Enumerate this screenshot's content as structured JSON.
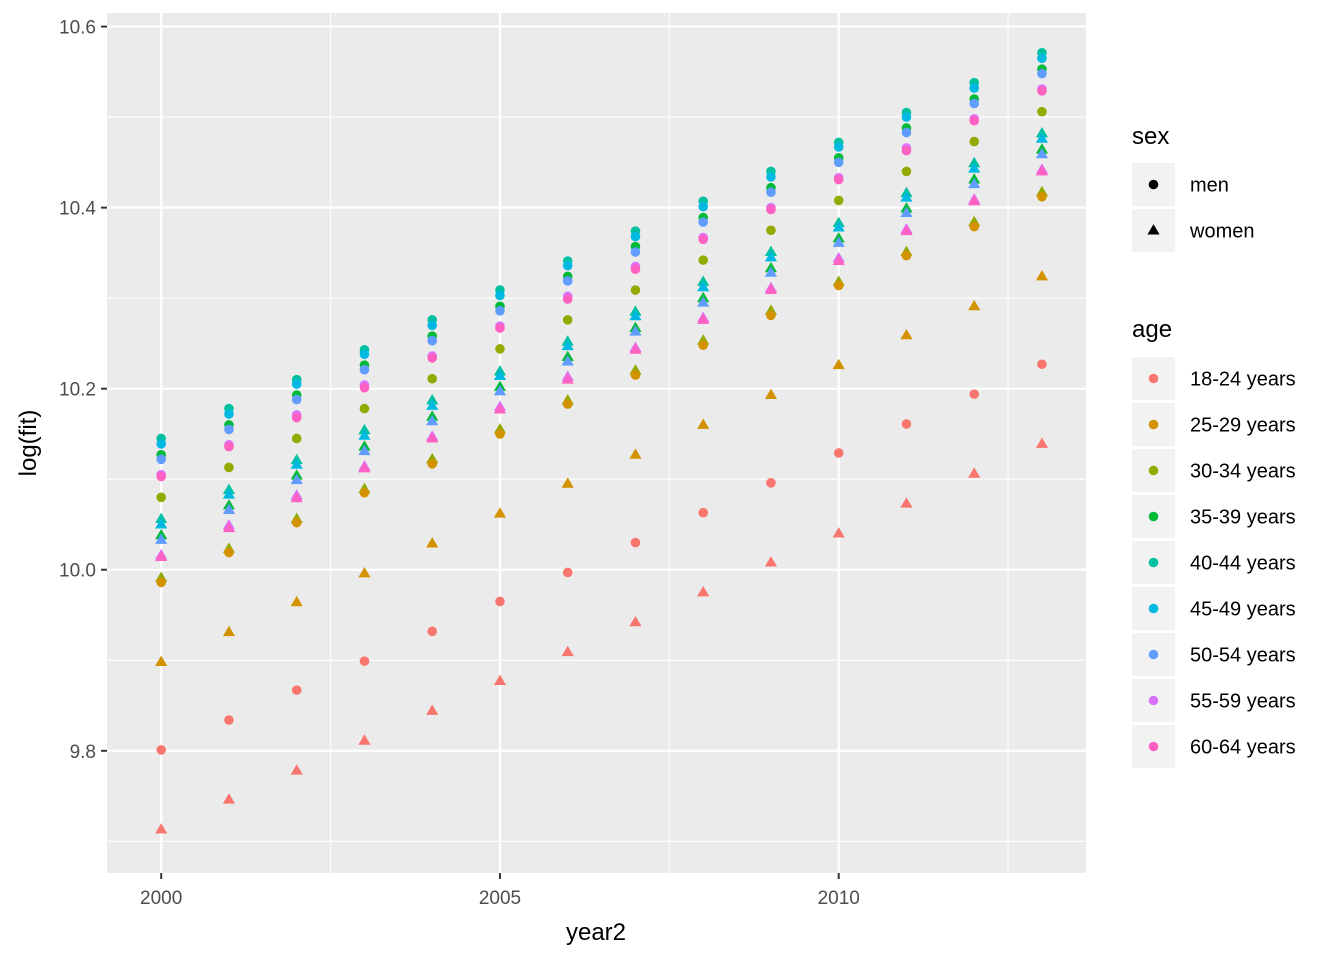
{
  "chart_data": {
    "type": "scatter",
    "xlabel": "year2",
    "ylabel": "log(fit)",
    "x": [
      2000,
      2001,
      2002,
      2003,
      2004,
      2005,
      2006,
      2007,
      2008,
      2009,
      2010,
      2011,
      2012,
      2013
    ],
    "xlim": [
      1999.2,
      2013.65
    ],
    "ylim": [
      9.665,
      10.615
    ],
    "x_ticks": [
      2000,
      2005,
      2010
    ],
    "x_tick_labels": [
      "2000",
      "2005",
      "2010"
    ],
    "y_ticks": [
      9.8,
      10.0,
      10.2,
      10.4,
      10.6
    ],
    "y_tick_labels": [
      "9.8",
      "10.0",
      "10.2",
      "10.4",
      "10.6"
    ],
    "grid": true,
    "legend_position": "right",
    "legends": {
      "shape": {
        "title": "sex",
        "entries": [
          {
            "label": "men",
            "shape": "circle"
          },
          {
            "label": "women",
            "shape": "triangle"
          }
        ]
      },
      "color": {
        "title": "age",
        "entries": [
          {
            "label": "18-24 years",
            "color": "#F8766D"
          },
          {
            "label": "25-29 years",
            "color": "#D39200"
          },
          {
            "label": "30-34 years",
            "color": "#93AA00"
          },
          {
            "label": "35-39 years",
            "color": "#00BA38"
          },
          {
            "label": "40-44 years",
            "color": "#00C19F"
          },
          {
            "label": "45-49 years",
            "color": "#00B9E3"
          },
          {
            "label": "50-54 years",
            "color": "#619CFF"
          },
          {
            "label": "55-59 years",
            "color": "#DB72FB"
          },
          {
            "label": "60-64 years",
            "color": "#FF61C3"
          }
        ]
      }
    },
    "series": [
      {
        "sex": "men",
        "age": "18-24 years",
        "values": [
          9.801,
          9.834,
          9.867,
          9.899,
          9.932,
          9.965,
          9.997,
          10.03,
          10.063,
          10.096,
          10.129,
          10.161,
          10.194,
          10.227
        ]
      },
      {
        "sex": "men",
        "age": "25-29 years",
        "values": [
          9.986,
          10.019,
          10.052,
          10.085,
          10.117,
          10.15,
          10.183,
          10.215,
          10.248,
          10.281,
          10.314,
          10.347,
          10.379,
          10.412
        ]
      },
      {
        "sex": "men",
        "age": "30-34 years",
        "values": [
          10.08,
          10.113,
          10.145,
          10.178,
          10.211,
          10.244,
          10.276,
          10.309,
          10.342,
          10.375,
          10.408,
          10.44,
          10.473,
          10.506
        ]
      },
      {
        "sex": "men",
        "age": "35-39 years",
        "values": [
          10.127,
          10.16,
          10.193,
          10.226,
          10.258,
          10.291,
          10.324,
          10.357,
          10.389,
          10.422,
          10.455,
          10.488,
          10.52,
          10.553
        ]
      },
      {
        "sex": "men",
        "age": "40-44 years",
        "values": [
          10.145,
          10.178,
          10.21,
          10.243,
          10.276,
          10.309,
          10.341,
          10.374,
          10.407,
          10.44,
          10.472,
          10.505,
          10.538,
          10.571
        ]
      },
      {
        "sex": "men",
        "age": "45-49 years",
        "values": [
          10.139,
          10.172,
          10.205,
          10.238,
          10.27,
          10.303,
          10.336,
          10.368,
          10.401,
          10.434,
          10.467,
          10.5,
          10.532,
          10.565
        ]
      },
      {
        "sex": "men",
        "age": "50-54 years",
        "values": [
          10.122,
          10.155,
          10.188,
          10.221,
          10.253,
          10.286,
          10.319,
          10.351,
          10.384,
          10.417,
          10.45,
          10.483,
          10.515,
          10.548
        ]
      },
      {
        "sex": "men",
        "age": "55-59 years",
        "values": [
          10.105,
          10.138,
          10.171,
          10.204,
          10.236,
          10.269,
          10.302,
          10.335,
          10.367,
          10.4,
          10.433,
          10.466,
          10.498,
          10.531
        ]
      },
      {
        "sex": "men",
        "age": "60-64 years",
        "values": [
          10.103,
          10.136,
          10.168,
          10.201,
          10.234,
          10.267,
          10.299,
          10.332,
          10.365,
          10.398,
          10.431,
          10.463,
          10.496,
          10.529
        ]
      },
      {
        "sex": "women",
        "age": "18-24 years",
        "values": [
          9.713,
          9.746,
          9.778,
          9.811,
          9.844,
          9.877,
          9.909,
          9.942,
          9.975,
          10.008,
          10.04,
          10.073,
          10.106,
          10.139
        ]
      },
      {
        "sex": "women",
        "age": "25-29 years",
        "values": [
          9.898,
          9.931,
          9.964,
          9.996,
          10.029,
          10.062,
          10.095,
          10.127,
          10.16,
          10.193,
          10.226,
          10.259,
          10.291,
          10.324
        ]
      },
      {
        "sex": "women",
        "age": "30-34 years",
        "values": [
          9.991,
          10.023,
          10.056,
          10.089,
          10.122,
          10.155,
          10.187,
          10.22,
          10.253,
          10.286,
          10.318,
          10.351,
          10.384,
          10.417
        ]
      },
      {
        "sex": "women",
        "age": "35-39 years",
        "values": [
          10.038,
          10.071,
          10.104,
          10.136,
          10.169,
          10.202,
          10.235,
          10.267,
          10.3,
          10.333,
          10.366,
          10.399,
          10.431,
          10.464
        ]
      },
      {
        "sex": "women",
        "age": "40-44 years",
        "values": [
          10.056,
          10.088,
          10.121,
          10.154,
          10.187,
          10.219,
          10.252,
          10.285,
          10.318,
          10.351,
          10.383,
          10.416,
          10.449,
          10.482
        ]
      },
      {
        "sex": "women",
        "age": "45-49 years",
        "values": [
          10.05,
          10.083,
          10.116,
          10.148,
          10.181,
          10.214,
          10.247,
          10.28,
          10.312,
          10.345,
          10.378,
          10.411,
          10.443,
          10.476
        ]
      },
      {
        "sex": "women",
        "age": "50-54 years",
        "values": [
          10.033,
          10.066,
          10.099,
          10.131,
          10.164,
          10.197,
          10.23,
          10.263,
          10.295,
          10.328,
          10.361,
          10.394,
          10.426,
          10.459
        ]
      },
      {
        "sex": "women",
        "age": "55-59 years",
        "values": [
          10.016,
          10.049,
          10.082,
          10.114,
          10.147,
          10.18,
          10.213,
          10.245,
          10.278,
          10.311,
          10.344,
          10.376,
          10.409,
          10.442
        ]
      },
      {
        "sex": "women",
        "age": "60-64 years",
        "values": [
          10.014,
          10.046,
          10.079,
          10.112,
          10.145,
          10.177,
          10.21,
          10.243,
          10.276,
          10.309,
          10.341,
          10.374,
          10.407,
          10.44
        ]
      }
    ]
  }
}
